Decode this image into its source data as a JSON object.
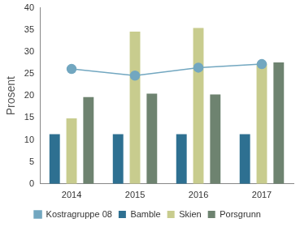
{
  "chart_data": {
    "type": "bar",
    "y_label": "Prosent",
    "categories": [
      "2014",
      "2015",
      "2016",
      "2017"
    ],
    "series": [
      {
        "name": "Bamble",
        "type": "bar",
        "color": "#2e7091",
        "values": [
          11.3,
          11.3,
          11.3,
          11.3
        ]
      },
      {
        "name": "Kostragruppe 08",
        "type": "line",
        "marker": "circle",
        "color": "#72a7c0",
        "values": [
          26.1,
          24.6,
          26.4,
          27.2
        ]
      },
      {
        "name": "Skien",
        "type": "bar",
        "color": "#c8cc8e",
        "values": [
          14.9,
          34.6,
          35.4,
          27.3
        ]
      },
      {
        "name": "Porsgrunn",
        "type": "bar",
        "color": "#6e8370",
        "values": [
          19.7,
          20.5,
          20.3,
          27.6
        ]
      }
    ],
    "ylim": [
      0,
      40
    ],
    "yticks": [
      0,
      5,
      10,
      15,
      20,
      25,
      30,
      35,
      40
    ],
    "grid": false,
    "legend": "bottom"
  }
}
